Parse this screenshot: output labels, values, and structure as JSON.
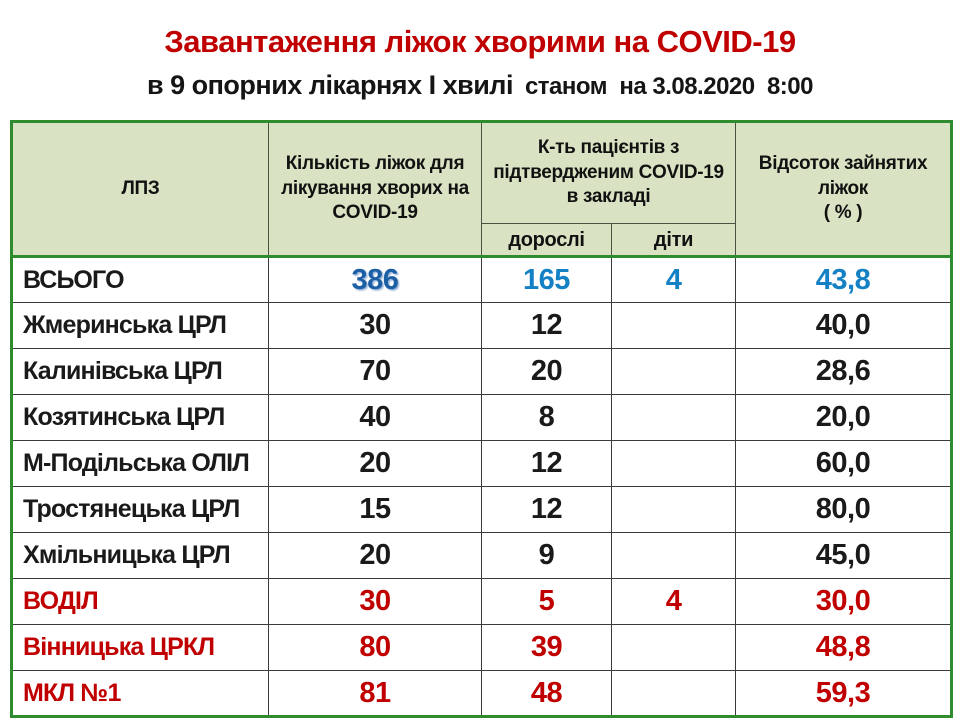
{
  "title": "Завантаження ліжок хворими на COVID-19",
  "subtitle": {
    "main": "в 9 опорних лікарнях І хвилі",
    "status": "станом  на 3.08.2020  8:00"
  },
  "colors": {
    "title_red": "#C00000",
    "data_red": "#C00000",
    "accent_blue": "#1581C5",
    "total_beds_blue": "#1C5FA5",
    "header_green_bg": "#D9E3C3",
    "table_border_green": "#2E8B2E"
  },
  "table": {
    "headers": {
      "facility": "ЛПЗ",
      "beds": "Кількість ліжок для лікування хворих на  COVID-19",
      "patients_group": "К-ть пацієнтів з підтвердженим COVID-19 в закладі",
      "adults": "дорослі",
      "children": "діти",
      "percent_line1": "Відсоток зайнятих ліжок",
      "percent_line2": "( % )"
    },
    "rows": [
      {
        "name": "ВСЬОГО",
        "beds": "386",
        "adults": "165",
        "children": "4",
        "percent": "43,8"
      },
      {
        "name": "Жмеринська ЦРЛ",
        "beds": "30",
        "adults": "12",
        "children": "",
        "percent": "40,0"
      },
      {
        "name": "Калинівська ЦРЛ",
        "beds": "70",
        "adults": "20",
        "children": "",
        "percent": "28,6"
      },
      {
        "name": "Козятинська ЦРЛ",
        "beds": "40",
        "adults": "8",
        "children": "",
        "percent": "20,0"
      },
      {
        "name": "М-Подільська ОЛІЛ",
        "beds": "20",
        "adults": "12",
        "children": "",
        "percent": "60,0"
      },
      {
        "name": "Тростянецька ЦРЛ",
        "beds": "15",
        "adults": "12",
        "children": "",
        "percent": "80,0"
      },
      {
        "name": "Хмільницька ЦРЛ",
        "beds": "20",
        "adults": "9",
        "children": "",
        "percent": "45,0"
      },
      {
        "name": "ВОДІЛ",
        "beds": "30",
        "adults": "5",
        "children": "4",
        "percent": "30,0"
      },
      {
        "name": "Вінницька ЦРКЛ",
        "beds": "80",
        "adults": "39",
        "children": "",
        "percent": "48,8"
      },
      {
        "name": "МКЛ №1",
        "beds": "81",
        "adults": "48",
        "children": "",
        "percent": "59,3"
      }
    ]
  }
}
